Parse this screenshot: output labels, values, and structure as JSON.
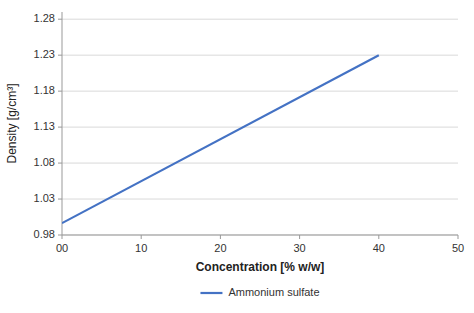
{
  "chart_data": {
    "type": "line",
    "xlabel": "Concentration [% w/w]",
    "ylabel": "Density [g/cm³]",
    "x": [
      0,
      40
    ],
    "series": [
      {
        "name": "Ammonium sulfate",
        "color": "#4472C4",
        "values": [
          0.9965,
          1.23
        ]
      }
    ],
    "xlim": [
      0,
      50
    ],
    "ylim": [
      0.98,
      1.29
    ],
    "xticks": [
      {
        "value": 0,
        "label": "00"
      },
      10,
      20,
      30,
      40,
      50
    ],
    "yticks": [
      0.98,
      1.03,
      1.08,
      1.13,
      1.18,
      1.23,
      1.28
    ],
    "grid": true,
    "legend": "bottom"
  }
}
